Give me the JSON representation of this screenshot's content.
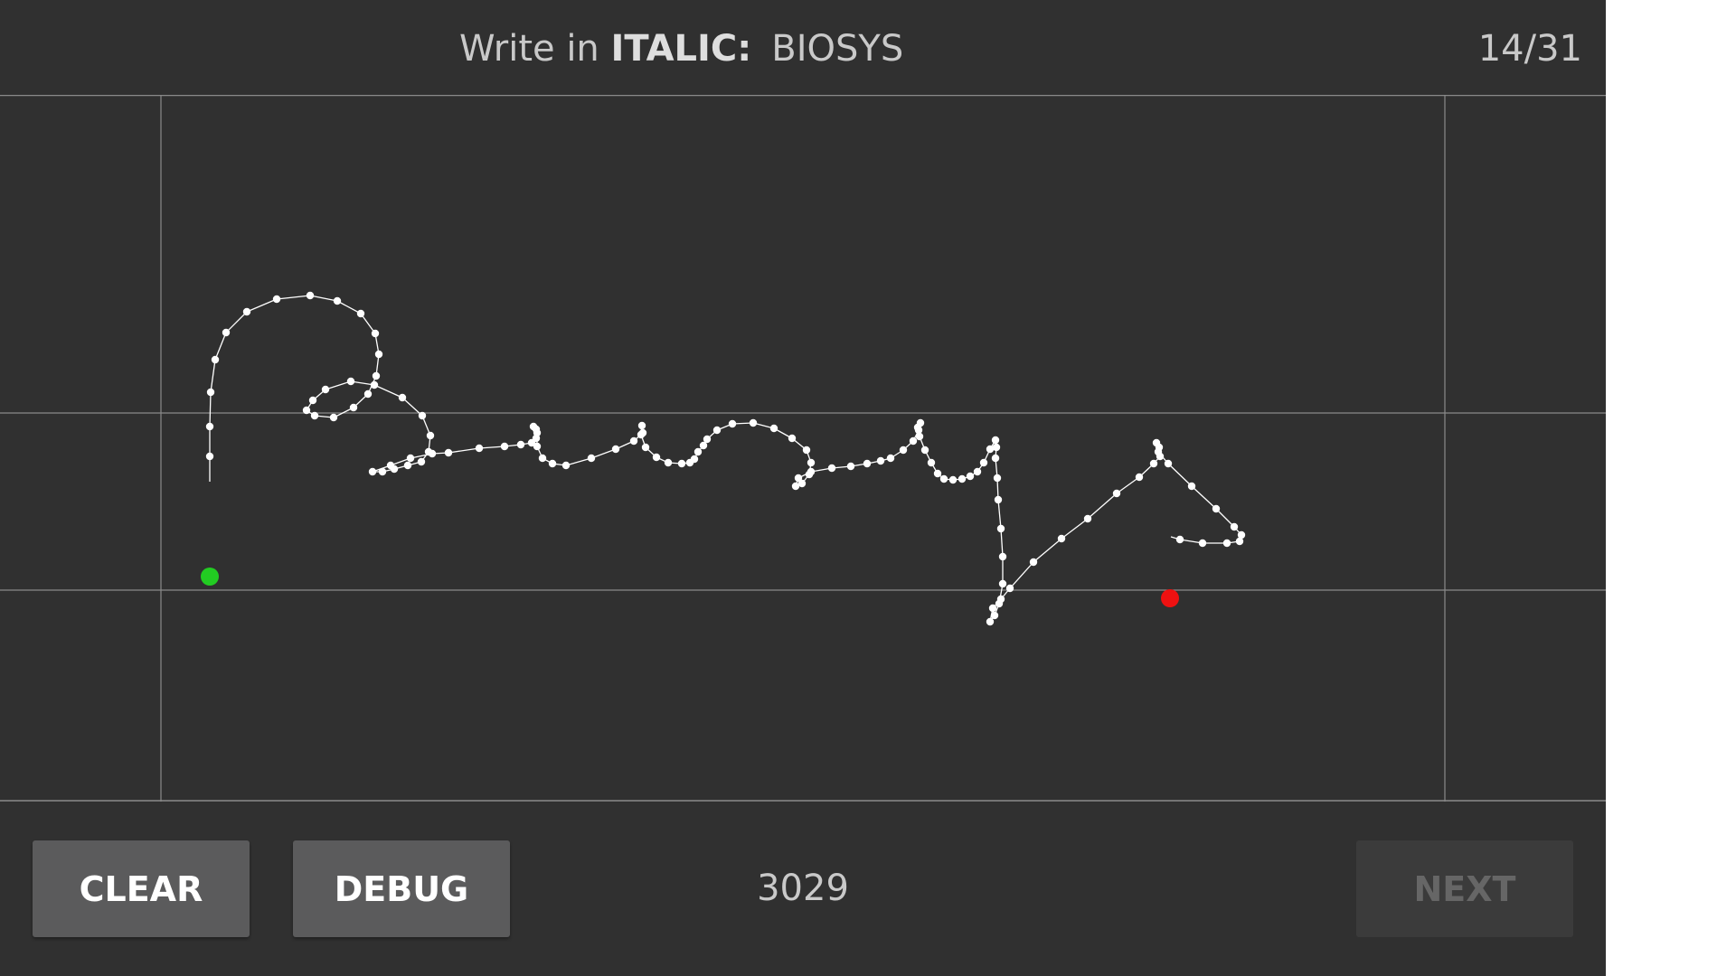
{
  "header": {
    "prompt_prefix": "Write in",
    "prompt_style": "ITALIC:",
    "prompt_word": "BIOSYS",
    "progress": "14/31"
  },
  "footer": {
    "clear_label": "CLEAR",
    "debug_label": "DEBUG",
    "point_count": "3029",
    "next_label": "NEXT"
  },
  "colors": {
    "background": "#303030",
    "guide_lines": "#8a8a8a",
    "stroke": "#ffffff",
    "start_point": "#22cc22",
    "end_point": "#ee1111",
    "button": "#5b5b5c",
    "button_disabled": "#3b3b3b"
  }
}
